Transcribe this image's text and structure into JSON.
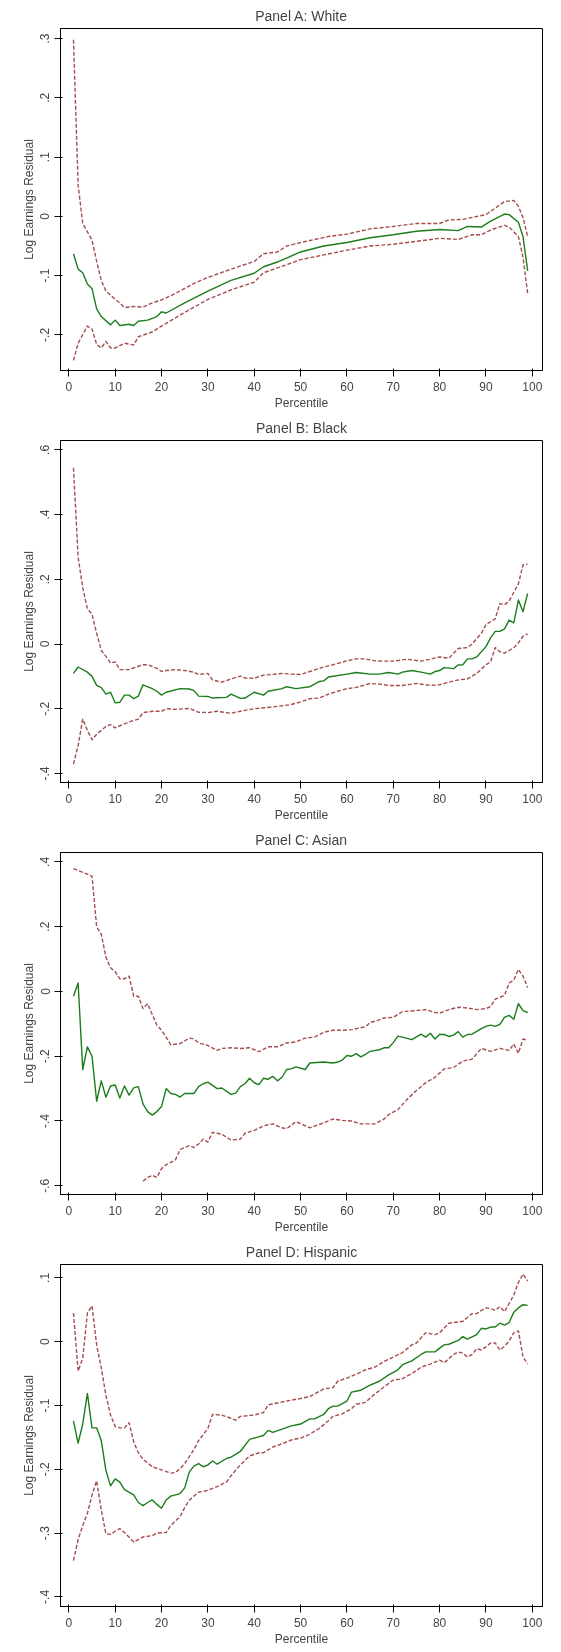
{
  "chart_data": [
    {
      "type": "line",
      "title": "Panel A: White",
      "xlabel": "Percentile",
      "ylabel": "Log Earnings Residual",
      "xlim": [
        -1.8,
        102.2
      ],
      "xticks": [
        0,
        10,
        20,
        30,
        40,
        50,
        60,
        70,
        80,
        90,
        100
      ],
      "ylim": [
        -0.26,
        0.317
      ],
      "yticks": [
        {
          "value": -0.2,
          "label": "-.2"
        },
        {
          "value": -0.1,
          "label": "-.1"
        },
        {
          "value": 0,
          "label": "0"
        },
        {
          "value": 0.1,
          "label": ".1"
        },
        {
          "value": 0.2,
          "label": ".2"
        },
        {
          "value": 0.3,
          "label": ".3"
        }
      ],
      "grid": false,
      "series": [
        {
          "color": "#1b7d1b",
          "line_style": "solid",
          "x": [
            1,
            2,
            3,
            4,
            5,
            6,
            7,
            9,
            10,
            11,
            13,
            14,
            15,
            17,
            19,
            20,
            21,
            25,
            30,
            35,
            40,
            42,
            45,
            50,
            55,
            60,
            65,
            70,
            75,
            80,
            84,
            86,
            89,
            91,
            94,
            95,
            97,
            98,
            99
          ],
          "values": [
            -0.063,
            -0.089,
            -0.095,
            -0.114,
            -0.122,
            -0.156,
            -0.169,
            -0.183,
            -0.175,
            -0.184,
            -0.182,
            -0.184,
            -0.177,
            -0.175,
            -0.169,
            -0.161,
            -0.163,
            -0.146,
            -0.126,
            -0.108,
            -0.096,
            -0.085,
            -0.077,
            -0.06,
            -0.05,
            -0.044,
            -0.036,
            -0.031,
            -0.025,
            -0.022,
            -0.024,
            -0.017,
            -0.018,
            -0.008,
            0.004,
            0.003,
            -0.01,
            -0.034,
            -0.092
          ]
        },
        {
          "color": "#a64d4d",
          "line_style": "dashed",
          "x": [
            1,
            2,
            3,
            5,
            6,
            7,
            8,
            10,
            11,
            12,
            14,
            16,
            18,
            20,
            23,
            27,
            30,
            35,
            40,
            42,
            45,
            47,
            50,
            53,
            56,
            60,
            65,
            70,
            75,
            80,
            82,
            85,
            90,
            92,
            94,
            96,
            97,
            98,
            99
          ],
          "values": [
            0.298,
            0.053,
            -0.012,
            -0.04,
            -0.076,
            -0.108,
            -0.126,
            -0.14,
            -0.146,
            -0.154,
            -0.152,
            -0.153,
            -0.146,
            -0.141,
            -0.13,
            -0.113,
            -0.103,
            -0.089,
            -0.076,
            -0.063,
            -0.06,
            -0.05,
            -0.044,
            -0.039,
            -0.034,
            -0.03,
            -0.021,
            -0.017,
            -0.012,
            -0.012,
            -0.006,
            -0.005,
            0.003,
            0.014,
            0.025,
            0.027,
            0.017,
            -0.002,
            -0.034
          ]
        },
        {
          "color": "#a64d4d",
          "line_style": "dashed",
          "x": [
            1,
            2,
            4,
            5,
            6,
            7,
            8,
            9,
            10,
            12,
            14,
            15,
            18,
            20,
            25,
            30,
            35,
            40,
            42,
            45,
            50,
            55,
            60,
            65,
            70,
            75,
            80,
            84,
            87,
            89,
            91,
            94,
            95,
            97,
            98,
            99
          ],
          "values": [
            -0.243,
            -0.214,
            -0.185,
            -0.19,
            -0.216,
            -0.222,
            -0.211,
            -0.222,
            -0.222,
            -0.214,
            -0.217,
            -0.203,
            -0.195,
            -0.185,
            -0.162,
            -0.14,
            -0.124,
            -0.111,
            -0.095,
            -0.087,
            -0.073,
            -0.065,
            -0.057,
            -0.05,
            -0.047,
            -0.042,
            -0.037,
            -0.039,
            -0.031,
            -0.031,
            -0.023,
            -0.015,
            -0.018,
            -0.034,
            -0.069,
            -0.13
          ]
        }
      ]
    },
    {
      "type": "line",
      "title": "Panel B: Black",
      "xlabel": "Percentile",
      "ylabel": "Log Earnings Residual",
      "xlim": [
        -1.8,
        102.2
      ],
      "xticks": [
        0,
        10,
        20,
        30,
        40,
        50,
        60,
        70,
        80,
        90,
        100
      ],
      "ylim": [
        -0.428,
        0.629
      ],
      "yticks": [
        {
          "value": -0.4,
          "label": "-.4"
        },
        {
          "value": -0.2,
          "label": "-.2"
        },
        {
          "value": 0,
          "label": "0"
        },
        {
          "value": 0.2,
          "label": ".2"
        },
        {
          "value": 0.4,
          "label": ".4"
        },
        {
          "value": 0.6,
          "label": ".6"
        }
      ],
      "grid": false,
      "series": [
        {
          "color": "#1b7d1b",
          "line_style": "solid",
          "x": [
            1,
            2,
            4,
            5,
            6,
            7,
            8,
            9,
            10,
            11,
            12,
            13,
            14,
            15,
            16,
            18,
            19,
            20,
            21,
            24,
            26,
            27,
            28,
            30,
            31,
            34,
            35,
            37,
            38,
            40,
            42,
            43,
            46,
            47,
            49,
            52,
            54,
            55,
            56,
            60,
            62,
            65,
            67,
            69,
            71,
            72,
            74,
            76,
            78,
            79,
            80,
            81,
            83,
            84,
            85,
            86,
            87,
            88,
            90,
            91,
            92,
            93,
            94,
            95,
            96,
            97,
            98,
            99
          ],
          "values": [
            -0.091,
            -0.071,
            -0.087,
            -0.1,
            -0.128,
            -0.135,
            -0.155,
            -0.149,
            -0.182,
            -0.18,
            -0.158,
            -0.158,
            -0.169,
            -0.161,
            -0.126,
            -0.138,
            -0.146,
            -0.158,
            -0.149,
            -0.138,
            -0.139,
            -0.144,
            -0.161,
            -0.162,
            -0.167,
            -0.165,
            -0.155,
            -0.168,
            -0.167,
            -0.149,
            -0.158,
            -0.146,
            -0.138,
            -0.132,
            -0.138,
            -0.132,
            -0.116,
            -0.114,
            -0.102,
            -0.093,
            -0.088,
            -0.093,
            -0.093,
            -0.088,
            -0.093,
            -0.087,
            -0.082,
            -0.087,
            -0.093,
            -0.085,
            -0.082,
            -0.073,
            -0.076,
            -0.065,
            -0.064,
            -0.046,
            -0.046,
            -0.04,
            -0.008,
            0.019,
            0.039,
            0.039,
            0.047,
            0.074,
            0.065,
            0.136,
            0.1,
            0.156
          ]
        },
        {
          "color": "#a64d4d",
          "line_style": "dashed",
          "x": [
            1,
            2,
            3,
            4,
            5,
            6,
            7,
            8,
            9,
            10,
            11,
            13,
            16,
            17,
            19,
            20,
            21,
            23,
            25,
            27,
            28,
            30,
            31,
            33,
            35,
            37,
            38,
            40,
            42,
            44,
            46,
            48,
            50,
            52,
            55,
            57,
            60,
            62,
            64,
            66,
            68,
            70,
            73,
            76,
            78,
            80,
            82,
            84,
            86,
            87,
            89,
            90,
            92,
            93,
            94,
            95,
            97,
            98,
            99
          ],
          "values": [
            0.545,
            0.268,
            0.174,
            0.109,
            0.092,
            0.033,
            -0.02,
            -0.038,
            -0.059,
            -0.055,
            -0.079,
            -0.079,
            -0.064,
            -0.064,
            -0.075,
            -0.085,
            -0.082,
            -0.079,
            -0.082,
            -0.087,
            -0.094,
            -0.091,
            -0.111,
            -0.118,
            -0.108,
            -0.099,
            -0.105,
            -0.106,
            -0.096,
            -0.094,
            -0.091,
            -0.093,
            -0.094,
            -0.085,
            -0.071,
            -0.064,
            -0.052,
            -0.046,
            -0.046,
            -0.052,
            -0.053,
            -0.053,
            -0.047,
            -0.053,
            -0.047,
            -0.04,
            -0.044,
            -0.014,
            -0.011,
            0.0,
            0.033,
            0.06,
            0.078,
            0.125,
            0.121,
            0.133,
            0.186,
            0.245,
            0.247
          ]
        },
        {
          "color": "#a64d4d",
          "line_style": "dashed",
          "x": [
            1,
            2,
            3,
            4,
            5,
            6,
            8,
            9,
            10,
            13,
            15,
            16,
            18,
            20,
            21,
            23,
            26,
            28,
            30,
            32,
            35,
            38,
            40,
            43,
            46,
            48,
            50,
            52,
            54,
            56,
            58,
            60,
            62,
            65,
            67,
            69,
            72,
            75,
            78,
            80,
            82,
            84,
            86,
            88,
            90,
            91,
            92,
            93,
            94,
            95,
            96,
            97,
            98,
            99
          ],
          "values": [
            -0.371,
            -0.314,
            -0.232,
            -0.267,
            -0.296,
            -0.279,
            -0.255,
            -0.249,
            -0.259,
            -0.241,
            -0.232,
            -0.212,
            -0.208,
            -0.208,
            -0.2,
            -0.202,
            -0.199,
            -0.211,
            -0.212,
            -0.208,
            -0.214,
            -0.205,
            -0.2,
            -0.196,
            -0.191,
            -0.187,
            -0.179,
            -0.169,
            -0.167,
            -0.155,
            -0.146,
            -0.138,
            -0.134,
            -0.122,
            -0.124,
            -0.128,
            -0.128,
            -0.122,
            -0.128,
            -0.126,
            -0.118,
            -0.111,
            -0.108,
            -0.091,
            -0.064,
            -0.055,
            -0.011,
            -0.024,
            -0.028,
            -0.02,
            -0.012,
            0.004,
            0.024,
            0.031
          ]
        }
      ]
    },
    {
      "type": "line",
      "title": "Panel C: Asian",
      "xlabel": "Percentile",
      "ylabel": "Log Earnings Residual",
      "xlim": [
        -1.8,
        102.2
      ],
      "xticks": [
        0,
        10,
        20,
        30,
        40,
        50,
        60,
        70,
        80,
        90,
        100
      ],
      "ylim": [
        -0.627,
        0.429
      ],
      "yticks": [
        {
          "value": -0.6,
          "label": "-.6"
        },
        {
          "value": -0.4,
          "label": "-.4"
        },
        {
          "value": -0.2,
          "label": "-.2"
        },
        {
          "value": 0,
          "label": "0"
        },
        {
          "value": 0.2,
          "label": ".2"
        },
        {
          "value": 0.4,
          "label": ".4"
        }
      ],
      "grid": false,
      "series": [
        {
          "color": "#1b7d1b",
          "line_style": "solid",
          "x": [
            1,
            2,
            3,
            4,
            5,
            6,
            7,
            8,
            9,
            10,
            11,
            12,
            13,
            14,
            15,
            16,
            17,
            18,
            19,
            20,
            21,
            22,
            23,
            24,
            25,
            27,
            28,
            29,
            30,
            32,
            33,
            35,
            36,
            37,
            38,
            39,
            40,
            41,
            42,
            43,
            44,
            45,
            46,
            47,
            48,
            49,
            51,
            52,
            55,
            57,
            58,
            59,
            60,
            61,
            62,
            63,
            64,
            65,
            67,
            68,
            69,
            70,
            71,
            72,
            74,
            76,
            77,
            78,
            79,
            80,
            81,
            82,
            83,
            84,
            85,
            86,
            87,
            89,
            90,
            91,
            92,
            93,
            94,
            95,
            96,
            97,
            98,
            99
          ],
          "values": [
            -0.015,
            0.026,
            -0.241,
            -0.171,
            -0.2,
            -0.339,
            -0.276,
            -0.327,
            -0.292,
            -0.289,
            -0.329,
            -0.292,
            -0.32,
            -0.298,
            -0.294,
            -0.347,
            -0.371,
            -0.382,
            -0.371,
            -0.355,
            -0.3,
            -0.315,
            -0.318,
            -0.326,
            -0.315,
            -0.315,
            -0.294,
            -0.285,
            -0.28,
            -0.3,
            -0.298,
            -0.318,
            -0.314,
            -0.294,
            -0.285,
            -0.268,
            -0.282,
            -0.288,
            -0.268,
            -0.271,
            -0.262,
            -0.276,
            -0.265,
            -0.241,
            -0.239,
            -0.233,
            -0.241,
            -0.221,
            -0.218,
            -0.221,
            -0.218,
            -0.212,
            -0.198,
            -0.2,
            -0.192,
            -0.202,
            -0.194,
            -0.185,
            -0.18,
            -0.174,
            -0.174,
            -0.158,
            -0.138,
            -0.141,
            -0.149,
            -0.132,
            -0.141,
            -0.129,
            -0.147,
            -0.133,
            -0.133,
            -0.139,
            -0.135,
            -0.124,
            -0.141,
            -0.133,
            -0.132,
            -0.115,
            -0.108,
            -0.104,
            -0.108,
            -0.102,
            -0.08,
            -0.074,
            -0.086,
            -0.038,
            -0.059,
            -0.065
          ]
        },
        {
          "color": "#a64d4d",
          "line_style": "dashed",
          "x": [
            1,
            5,
            6,
            7,
            8,
            9,
            10,
            11,
            12,
            13,
            14,
            15,
            16,
            17,
            18,
            19,
            20,
            21,
            22,
            24,
            26,
            27,
            28,
            30,
            32,
            33,
            35,
            37,
            39,
            41,
            43,
            45,
            47,
            49,
            51,
            53,
            55,
            57,
            59,
            61,
            63,
            64,
            65,
            67,
            68,
            70,
            72,
            75,
            77,
            79,
            80,
            82,
            84,
            86,
            88,
            90,
            91,
            92,
            94,
            95,
            96,
            97,
            98,
            99
          ],
          "values": [
            0.379,
            0.356,
            0.2,
            0.176,
            0.106,
            0.073,
            0.061,
            0.039,
            0.039,
            0.047,
            -0.015,
            -0.015,
            -0.053,
            -0.038,
            -0.071,
            -0.104,
            -0.12,
            -0.141,
            -0.165,
            -0.161,
            -0.144,
            -0.147,
            -0.159,
            -0.167,
            -0.182,
            -0.176,
            -0.174,
            -0.176,
            -0.174,
            -0.186,
            -0.171,
            -0.171,
            -0.159,
            -0.156,
            -0.144,
            -0.141,
            -0.126,
            -0.12,
            -0.12,
            -0.118,
            -0.112,
            -0.109,
            -0.096,
            -0.088,
            -0.082,
            -0.08,
            -0.062,
            -0.059,
            -0.056,
            -0.065,
            -0.067,
            -0.056,
            -0.049,
            -0.051,
            -0.056,
            -0.053,
            -0.047,
            -0.024,
            -0.012,
            0.026,
            0.035,
            0.068,
            0.047,
            0.012
          ]
        },
        {
          "color": "#a64d4d",
          "line_style": "dashed",
          "x": [
            16,
            17,
            18,
            19,
            20,
            21,
            23,
            24,
            26,
            27,
            28,
            29,
            30,
            31,
            33,
            35,
            37,
            38,
            40,
            42,
            44,
            46,
            47,
            49,
            52,
            55,
            57,
            59,
            61,
            63,
            66,
            68,
            69,
            71,
            73,
            75,
            77,
            79,
            81,
            83,
            85,
            87,
            89,
            91,
            93,
            95,
            96,
            97,
            98,
            99
          ],
          "values": [
            -0.586,
            -0.574,
            -0.568,
            -0.574,
            -0.547,
            -0.535,
            -0.52,
            -0.488,
            -0.476,
            -0.482,
            -0.471,
            -0.456,
            -0.465,
            -0.435,
            -0.441,
            -0.459,
            -0.456,
            -0.438,
            -0.429,
            -0.415,
            -0.409,
            -0.421,
            -0.424,
            -0.402,
            -0.421,
            -0.406,
            -0.394,
            -0.398,
            -0.4,
            -0.409,
            -0.409,
            -0.394,
            -0.38,
            -0.365,
            -0.333,
            -0.306,
            -0.282,
            -0.265,
            -0.239,
            -0.235,
            -0.215,
            -0.209,
            -0.176,
            -0.185,
            -0.176,
            -0.182,
            -0.162,
            -0.191,
            -0.147,
            -0.151
          ]
        }
      ]
    },
    {
      "type": "line",
      "title": "Panel D: Hispanic",
      "xlabel": "Percentile",
      "ylabel": "Log Earnings Residual",
      "xlim": [
        -1.8,
        102.2
      ],
      "xticks": [
        0,
        10,
        20,
        30,
        40,
        50,
        60,
        70,
        80,
        90,
        100
      ],
      "ylim": [
        -0.415,
        0.121
      ],
      "yticks": [
        {
          "value": -0.4,
          "label": "-.4"
        },
        {
          "value": -0.3,
          "label": "-.3"
        },
        {
          "value": -0.2,
          "label": "-.2"
        },
        {
          "value": -0.1,
          "label": "-.1"
        },
        {
          "value": 0,
          "label": "0"
        },
        {
          "value": 0.1,
          "label": ".1"
        }
      ],
      "grid": false,
      "series": [
        {
          "color": "#1b7d1b",
          "line_style": "solid",
          "x": [
            1,
            2,
            3,
            4,
            5,
            6,
            7,
            8,
            9,
            10,
            11,
            12,
            14,
            15,
            16,
            17,
            18,
            19,
            20,
            21,
            22,
            24,
            25,
            26,
            27,
            28,
            29,
            30,
            31,
            32,
            34,
            35,
            37,
            39,
            42,
            43,
            44,
            48,
            50,
            52,
            53,
            55,
            56,
            57,
            58,
            60,
            61,
            63,
            65,
            67,
            69,
            71,
            72,
            74,
            76,
            77,
            79,
            80,
            81,
            82,
            84,
            85,
            86,
            88,
            89,
            90,
            91,
            92,
            93,
            94,
            95,
            96,
            97,
            98,
            99
          ],
          "values": [
            -0.124,
            -0.159,
            -0.129,
            -0.081,
            -0.135,
            -0.135,
            -0.155,
            -0.202,
            -0.226,
            -0.215,
            -0.22,
            -0.232,
            -0.24,
            -0.252,
            -0.257,
            -0.252,
            -0.248,
            -0.255,
            -0.261,
            -0.248,
            -0.242,
            -0.238,
            -0.229,
            -0.204,
            -0.195,
            -0.191,
            -0.196,
            -0.193,
            -0.187,
            -0.192,
            -0.183,
            -0.181,
            -0.172,
            -0.153,
            -0.147,
            -0.139,
            -0.142,
            -0.132,
            -0.129,
            -0.121,
            -0.121,
            -0.114,
            -0.105,
            -0.101,
            -0.101,
            -0.093,
            -0.079,
            -0.076,
            -0.068,
            -0.062,
            -0.052,
            -0.044,
            -0.036,
            -0.03,
            -0.02,
            -0.016,
            -0.016,
            -0.01,
            -0.005,
            -0.004,
            0.002,
            0.008,
            0.004,
            0.011,
            0.021,
            0.02,
            0.023,
            0.023,
            0.029,
            0.026,
            0.03,
            0.046,
            0.053,
            0.058,
            0.057
          ]
        },
        {
          "color": "#a64d4d",
          "line_style": "dashed",
          "x": [
            1,
            2,
            3,
            4,
            5,
            6,
            7,
            8,
            9,
            10,
            11,
            12,
            13,
            14,
            15,
            16,
            18,
            20,
            22,
            23,
            24,
            25,
            27,
            28,
            30,
            31,
            33,
            35,
            36,
            37,
            40,
            42,
            43,
            45,
            47,
            50,
            52,
            54,
            55,
            57,
            58,
            60,
            62,
            64,
            66,
            68,
            70,
            72,
            74,
            75,
            77,
            79,
            80,
            82,
            83,
            85,
            86,
            87,
            88,
            89,
            90,
            91,
            92,
            93,
            94,
            95,
            96,
            97,
            98,
            99
          ],
          "values": [
            0.045,
            -0.046,
            -0.026,
            0.045,
            0.056,
            -0.005,
            -0.041,
            -0.084,
            -0.115,
            -0.133,
            -0.135,
            -0.135,
            -0.127,
            -0.157,
            -0.174,
            -0.184,
            -0.196,
            -0.201,
            -0.206,
            -0.205,
            -0.199,
            -0.191,
            -0.169,
            -0.155,
            -0.136,
            -0.114,
            -0.115,
            -0.12,
            -0.123,
            -0.117,
            -0.115,
            -0.111,
            -0.099,
            -0.096,
            -0.093,
            -0.089,
            -0.086,
            -0.078,
            -0.074,
            -0.072,
            -0.062,
            -0.057,
            -0.051,
            -0.044,
            -0.04,
            -0.031,
            -0.024,
            -0.017,
            -0.005,
            -0.002,
            0.014,
            0.011,
            0.014,
            0.029,
            0.03,
            0.032,
            0.038,
            0.044,
            0.044,
            0.049,
            0.053,
            0.052,
            0.049,
            0.055,
            0.047,
            0.06,
            0.073,
            0.093,
            0.106,
            0.095
          ]
        },
        {
          "color": "#a64d4d",
          "line_style": "dashed",
          "x": [
            1,
            2,
            3,
            4,
            5,
            6,
            7,
            8,
            9,
            10,
            11,
            12,
            14,
            16,
            18,
            19,
            21,
            22,
            24,
            25,
            26,
            28,
            30,
            32,
            34,
            35,
            37,
            39,
            41,
            42,
            44,
            46,
            48,
            50,
            52,
            54,
            56,
            57,
            59,
            61,
            62,
            64,
            66,
            68,
            70,
            72,
            74,
            76,
            78,
            80,
            81,
            83,
            84,
            85,
            86,
            87,
            88,
            89,
            90,
            91,
            92,
            93,
            94,
            95,
            96,
            97,
            98,
            99
          ],
          "values": [
            -0.343,
            -0.31,
            -0.288,
            -0.269,
            -0.24,
            -0.218,
            -0.264,
            -0.301,
            -0.302,
            -0.297,
            -0.293,
            -0.299,
            -0.314,
            -0.306,
            -0.304,
            -0.3,
            -0.299,
            -0.288,
            -0.274,
            -0.26,
            -0.248,
            -0.236,
            -0.233,
            -0.227,
            -0.22,
            -0.21,
            -0.193,
            -0.179,
            -0.174,
            -0.174,
            -0.165,
            -0.16,
            -0.154,
            -0.151,
            -0.145,
            -0.136,
            -0.124,
            -0.117,
            -0.113,
            -0.105,
            -0.098,
            -0.095,
            -0.082,
            -0.071,
            -0.06,
            -0.058,
            -0.05,
            -0.04,
            -0.035,
            -0.029,
            -0.033,
            -0.02,
            -0.016,
            -0.018,
            -0.024,
            -0.02,
            -0.011,
            -0.013,
            -0.008,
            -0.002,
            -0.002,
            -0.013,
            -0.007,
            0.001,
            0.014,
            0.017,
            -0.024,
            -0.035
          ]
        }
      ]
    }
  ]
}
